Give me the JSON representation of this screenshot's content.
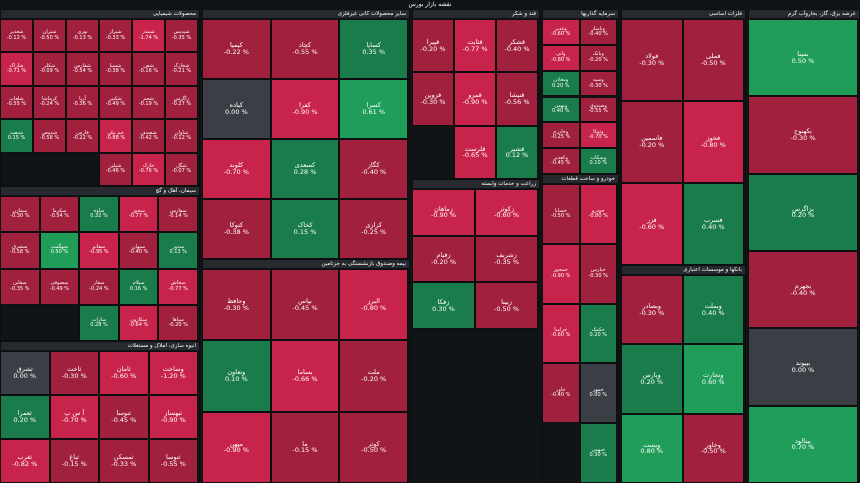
{
  "page": {
    "title": "نقشه بازار بورس"
  },
  "colors": {
    "background": "#111417",
    "header": "#262a2e",
    "up_strong": "#1f9d59",
    "up": "#1a7c4a",
    "neutral": "#3b3f45",
    "down": "#a0203d",
    "down_strong": "#c8234a"
  },
  "chart_data": {
    "type": "treemap",
    "title": "نقشه بازار بورس",
    "sectors": [
      {
        "name": "محصولات شیمیایی",
        "tiles": [
          {
            "symbol": "شپدیس",
            "change": -0.35
          },
          {
            "symbol": "شبندر",
            "change": -1.74
          },
          {
            "symbol": "شیراز",
            "change": -0.33
          },
          {
            "symbol": "نوری",
            "change": -0.13
          },
          {
            "symbol": "شتران",
            "change": -0.5
          },
          {
            "symbol": "شغدیر",
            "change": -0.12
          },
          {
            "symbol": "شخارک",
            "change": -0.21
          },
          {
            "symbol": "شفن",
            "change": -0.16
          },
          {
            "symbol": "شسپا",
            "change": -0.38
          },
          {
            "symbol": "شفارس",
            "change": -0.54
          },
          {
            "symbol": "شکلر",
            "change": -0.09
          },
          {
            "symbol": "شاراک",
            "change": -0.71
          },
          {
            "symbol": "زاگرس",
            "change": -0.27
          },
          {
            "symbol": "شجم",
            "change": -0.19
          },
          {
            "symbol": "شکبیر",
            "change": -0.49
          },
          {
            "symbol": "آریا",
            "change": -0.36
          },
          {
            "symbol": "کرماشا",
            "change": -0.24
          },
          {
            "symbol": "شلعاب",
            "change": -0.55
          },
          {
            "symbol": "شاوان",
            "change": -0.12
          },
          {
            "symbol": "شصدف",
            "change": -0.42
          },
          {
            "symbol": "جم پیلن",
            "change": -0.88
          },
          {
            "symbol": "فارس",
            "change": -0.22
          },
          {
            "symbol": "شدوص",
            "change": -0.58
          },
          {
            "symbol": "شنفت",
            "change": 0.15
          },
          {
            "symbol": "شگل",
            "change": -0.07
          },
          {
            "symbol": "خارک",
            "change": -0.76
          },
          {
            "symbol": "شپلی",
            "change": -0.46
          }
        ]
      },
      {
        "name": "سیمان، آهک و گچ",
        "tiles": [
          {
            "symbol": "سفارس",
            "change": -0.14
          },
          {
            "symbol": "سخوز",
            "change": -0.77
          },
          {
            "symbol": "ساوه",
            "change": 0.32
          },
          {
            "symbol": "سکرما",
            "change": -0.54
          },
          {
            "symbol": "سمازن",
            "change": -0.3
          },
          {
            "symbol": "سدور",
            "change": 0.13
          },
          {
            "symbol": "سبهان",
            "change": -0.4
          },
          {
            "symbol": "سفانو",
            "change": -0.95
          },
          {
            "symbol": "سهگمت",
            "change": 0.5
          },
          {
            "symbol": "سشرق",
            "change": -0.58
          },
          {
            "symbol": "سخاش",
            "change": -0.77
          },
          {
            "symbol": "سیلام",
            "change": 0.16
          },
          {
            "symbol": "سفار",
            "change": -0.24
          },
          {
            "symbol": "سصوفی",
            "change": -0.49
          },
          {
            "symbol": "سقاین",
            "change": -0.35
          },
          {
            "symbol": "سپاها",
            "change": -0.2
          },
          {
            "symbol": "سکارون",
            "change": -0.64
          },
          {
            "symbol": "ساراب",
            "change": 0.28
          }
        ]
      },
      {
        "name": "انبوه سازی، املاک و مستغلات",
        "tiles": [
          {
            "symbol": "وساخت",
            "change": -1.2
          },
          {
            "symbol": "ثامان",
            "change": -0.6
          },
          {
            "symbol": "ثاخت",
            "change": -0.3
          },
          {
            "symbol": "ثشرق",
            "change": 0.0
          },
          {
            "symbol": "ثبهساز",
            "change": -0.9
          },
          {
            "symbol": "ثنوسا",
            "change": -0.45
          },
          {
            "symbol": "آ س پ",
            "change": -0.7
          },
          {
            "symbol": "ثعمرا",
            "change": 0.2
          },
          {
            "symbol": "ثتوسا",
            "change": -0.55
          },
          {
            "symbol": "ثمسکن",
            "change": -0.33
          },
          {
            "symbol": "ثباغ",
            "change": -0.15
          },
          {
            "symbol": "ثغرب",
            "change": -0.82
          }
        ]
      },
      {
        "name": "سایر محصولات کانی غیرفلزی",
        "tiles": [
          {
            "symbol": "کساپا",
            "change": 0.35
          },
          {
            "symbol": "کچاد",
            "change": -0.55
          },
          {
            "symbol": "کیمیا",
            "change": -0.22
          },
          {
            "symbol": "کسرا",
            "change": 0.61
          },
          {
            "symbol": "کفرا",
            "change": -0.9
          },
          {
            "symbol": "کباده",
            "change": 0.0
          },
          {
            "symbol": "کگاز",
            "change": -0.4
          },
          {
            "symbol": "کسعدی",
            "change": 0.28
          },
          {
            "symbol": "کلوند",
            "change": -0.7
          },
          {
            "symbol": "کرازی",
            "change": -0.25
          },
          {
            "symbol": "کخاک",
            "change": 0.15
          },
          {
            "symbol": "کتوکا",
            "change": -0.38
          }
        ]
      },
      {
        "name": "بیمه وصندوق بازنشستگی به جزتامین",
        "tiles": [
          {
            "symbol": "البرز",
            "change": -0.8
          },
          {
            "symbol": "بپاس",
            "change": -0.45
          },
          {
            "symbol": "وحافظ",
            "change": -0.3
          },
          {
            "symbol": "ملت",
            "change": -0.2
          },
          {
            "symbol": "بساما",
            "change": -0.66
          },
          {
            "symbol": "وتعاون",
            "change": 0.1
          },
          {
            "symbol": "کوثر",
            "change": -0.5
          },
          {
            "symbol": "ما",
            "change": -0.15
          },
          {
            "symbol": "میهن",
            "change": -0.9
          }
        ]
      },
      {
        "name": "قند و شکر",
        "tiles": [
          {
            "symbol": "قشکر",
            "change": -0.4
          },
          {
            "symbol": "قثابت",
            "change": -0.77
          },
          {
            "symbol": "قپیرا",
            "change": -0.2
          },
          {
            "symbol": "قنیشا",
            "change": -0.56
          },
          {
            "symbol": "قمرو",
            "change": -0.9
          },
          {
            "symbol": "قزوین",
            "change": -0.3
          },
          {
            "symbol": "قشیر",
            "change": 0.12
          },
          {
            "symbol": "قلرست",
            "change": -0.65
          }
        ]
      },
      {
        "name": "زراعت و خدمات وابسته",
        "tiles": [
          {
            "symbol": "زکوثر",
            "change": -0.6
          },
          {
            "symbol": "زماهان",
            "change": -0.9
          },
          {
            "symbol": "زشریف",
            "change": -0.35
          },
          {
            "symbol": "زقیام",
            "change": -0.2
          },
          {
            "symbol": "زبینا",
            "change": -0.5
          },
          {
            "symbol": "زفکا",
            "change": 0.3
          }
        ]
      },
      {
        "name": "سرمایه گذاریها",
        "tiles": [
          {
            "symbol": "وپاسار",
            "change": -0.4
          },
          {
            "symbol": "وغدیر",
            "change": -0.6
          },
          {
            "symbol": "وبانک",
            "change": -0.2
          },
          {
            "symbol": "واتی",
            "change": -0.8
          },
          {
            "symbol": "وسپه",
            "change": -0.3
          },
          {
            "symbol": "ومعادن",
            "change": 0.2
          },
          {
            "symbol": "وصندوق",
            "change": -0.55
          },
          {
            "symbol": "وبهمن",
            "change": 0.4
          },
          {
            "symbol": "وتوکا",
            "change": -0.7
          },
          {
            "symbol": "وخارزم",
            "change": -0.25
          },
          {
            "symbol": "وسکاب",
            "change": 0.1
          },
          {
            "symbol": "وکغدیر",
            "change": -0.45
          }
        ]
      },
      {
        "name": "خودرو و ساخت قطعات",
        "tiles": [
          {
            "symbol": "خودرو",
            "change": -0.8
          },
          {
            "symbol": "خساپا",
            "change": -0.5
          },
          {
            "symbol": "خپارس",
            "change": -0.3
          },
          {
            "symbol": "خمحور",
            "change": -0.9
          },
          {
            "symbol": "خکمک",
            "change": 0.2
          },
          {
            "symbol": "خزامیا",
            "change": -0.6
          },
          {
            "symbol": "خمهر",
            "change": 0.0
          },
          {
            "symbol": "خاور",
            "change": -0.4
          },
          {
            "symbol": "خبهمن",
            "change": 0.3
          }
        ]
      },
      {
        "name": "فلزات اساسی",
        "tiles": [
          {
            "symbol": "فملی",
            "change": -0.5
          },
          {
            "symbol": "فولاد",
            "change": -0.3
          },
          {
            "symbol": "فخوز",
            "change": -0.8
          },
          {
            "symbol": "فاسمین",
            "change": -0.2
          },
          {
            "symbol": "فسرب",
            "change": 0.4
          },
          {
            "symbol": "فزر",
            "change": -0.6
          }
        ]
      },
      {
        "name": "بانکها و موسسات اعتباری",
        "tiles": [
          {
            "symbol": "وبملت",
            "change": 0.4
          },
          {
            "symbol": "وبصادر",
            "change": -0.3
          },
          {
            "symbol": "وتجارت",
            "change": 0.6
          },
          {
            "symbol": "وپارس",
            "change": 0.2
          },
          {
            "symbol": "وخاور",
            "change": -0.5
          },
          {
            "symbol": "وپست",
            "change": 0.8
          }
        ]
      },
      {
        "name": "عرضه برق، گاز، بخاروآب گرم",
        "tiles": [
          {
            "symbol": "بمپنا",
            "change": 0.5
          },
          {
            "symbol": "بکهنوج",
            "change": -0.3
          },
          {
            "symbol": "بزاگرس",
            "change": 0.2
          },
          {
            "symbol": "بجهرم",
            "change": -0.4
          },
          {
            "symbol": "بپیوند",
            "change": 0.0
          },
          {
            "symbol": "بینالود",
            "change": 0.7
          }
        ]
      }
    ]
  }
}
